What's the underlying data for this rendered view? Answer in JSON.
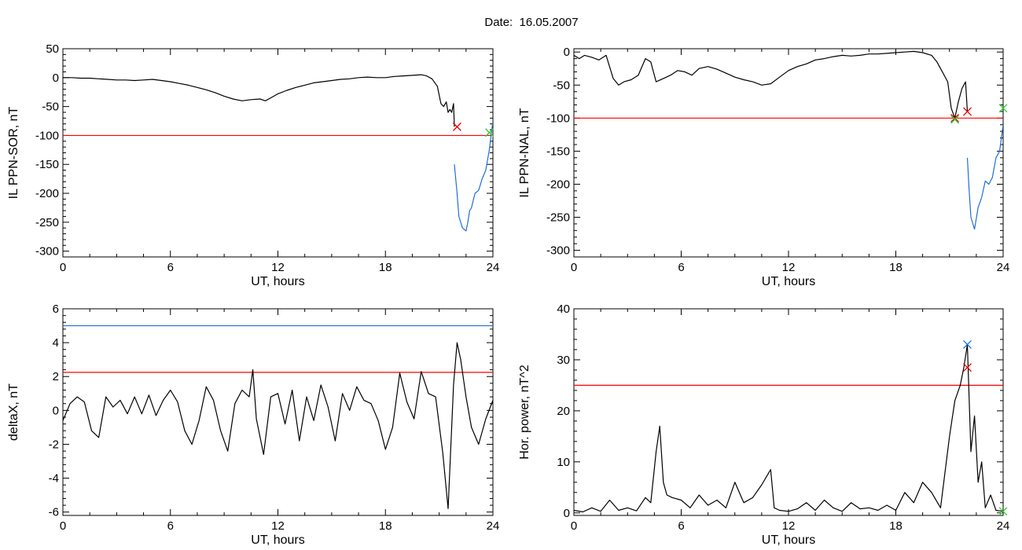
{
  "page_title": "Date:  16.05.2007",
  "colors": {
    "signal": "#000000",
    "threshold_red": "#ff0000",
    "threshold_blue": "#1f6fd6",
    "event_segment_blue": "#1f6fd6",
    "marker_red": "#e00000",
    "marker_green": "#33cc33",
    "marker_blue": "#1f6fd6"
  },
  "chart_data": [
    {
      "type": "line",
      "xlabel": "UT, hours",
      "ylabel": "IL PPN-SOR, nT",
      "xlim": [
        0,
        24
      ],
      "ylim": [
        -310,
        50
      ],
      "xticks": [
        0,
        6,
        12,
        18,
        24
      ],
      "yticks": [
        50,
        0,
        -50,
        -100,
        -150,
        -200,
        -250,
        -300
      ],
      "grid": false,
      "thresholds": [
        {
          "y": -100,
          "color": "#ff0000"
        }
      ],
      "series": [
        {
          "color": "#000000",
          "x": [
            0,
            0.5,
            1,
            1.5,
            2,
            2.5,
            3,
            3.5,
            4,
            4.5,
            5,
            5.5,
            6,
            6.5,
            7,
            7.5,
            8,
            8.5,
            9,
            9.5,
            10,
            10.5,
            11,
            11.3,
            11.6,
            12,
            12.5,
            13,
            13.5,
            14,
            14.5,
            15,
            15.5,
            16,
            16.5,
            17,
            17.5,
            18,
            18.5,
            19,
            19.5,
            20,
            20.3,
            20.6,
            20.9,
            21.1,
            21.25,
            21.4,
            21.5,
            21.6,
            21.7,
            21.8,
            21.85
          ],
          "y": [
            0,
            0,
            -1,
            -1,
            -2,
            -3,
            -4,
            -4,
            -5,
            -4,
            -3,
            -5,
            -7,
            -10,
            -13,
            -17,
            -21,
            -26,
            -32,
            -37,
            -40,
            -38,
            -37,
            -40,
            -35,
            -28,
            -22,
            -17,
            -13,
            -9,
            -7,
            -5,
            -3,
            -2,
            0,
            1,
            0,
            0,
            2,
            3,
            4,
            5,
            3,
            -2,
            -15,
            -45,
            -50,
            -42,
            -60,
            -55,
            -60,
            -45,
            -85
          ]
        },
        {
          "color": "#1f6fd6",
          "x": [
            21.85,
            22,
            22.1,
            22.3,
            22.5,
            22.6,
            22.7,
            22.8,
            23,
            23.2,
            23.4,
            23.6,
            23.8,
            24
          ],
          "y": [
            -150,
            -200,
            -240,
            -260,
            -265,
            -250,
            -230,
            -225,
            -200,
            -195,
            -175,
            -160,
            -125,
            -75
          ]
        }
      ],
      "markers": [
        {
          "x": 22.0,
          "y": -85,
          "symbol": "x",
          "color": "#e00000"
        },
        {
          "x": 23.8,
          "y": -95,
          "symbol": "x",
          "color": "#33cc33"
        }
      ]
    },
    {
      "type": "line",
      "xlabel": "UT, hours",
      "ylabel": "IL PPN-NAL, nT",
      "xlim": [
        0,
        24
      ],
      "ylim": [
        -310,
        5
      ],
      "xticks": [
        0,
        6,
        12,
        18,
        24
      ],
      "yticks": [
        0,
        -50,
        -100,
        -150,
        -200,
        -250,
        -300
      ],
      "grid": false,
      "thresholds": [
        {
          "y": -100,
          "color": "#ff0000"
        }
      ],
      "series": [
        {
          "color": "#000000",
          "x": [
            0,
            0.3,
            0.6,
            1,
            1.4,
            1.8,
            2.2,
            2.5,
            2.8,
            3.2,
            3.6,
            4,
            4.3,
            4.6,
            5,
            5.4,
            5.8,
            6.2,
            6.6,
            7,
            7.5,
            8,
            8.5,
            9,
            9.5,
            10,
            10.5,
            11,
            11.5,
            12,
            12.5,
            13,
            13.5,
            14,
            14.5,
            15,
            15.5,
            16,
            16.5,
            17,
            17.5,
            18,
            18.5,
            19,
            19.5,
            20,
            20.3,
            20.6,
            20.9,
            21.1,
            21.3,
            21.5,
            21.7,
            21.9,
            22.0
          ],
          "y": [
            -5,
            -10,
            -5,
            -8,
            -12,
            -5,
            -40,
            -50,
            -45,
            -42,
            -35,
            -10,
            -15,
            -45,
            -40,
            -35,
            -28,
            -30,
            -35,
            -25,
            -22,
            -26,
            -32,
            -38,
            -42,
            -45,
            -50,
            -48,
            -38,
            -28,
            -22,
            -18,
            -12,
            -10,
            -7,
            -5,
            -6,
            -5,
            -3,
            -3,
            -2,
            -1,
            0,
            1,
            -1,
            -5,
            -15,
            -30,
            -45,
            -85,
            -100,
            -75,
            -55,
            -45,
            -90
          ]
        },
        {
          "color": "#1f6fd6",
          "x": [
            22.0,
            22.1,
            22.2,
            22.4,
            22.6,
            22.8,
            23,
            23.2,
            23.4,
            23.6,
            23.8,
            24
          ],
          "y": [
            -160,
            -210,
            -250,
            -268,
            -235,
            -220,
            -195,
            -200,
            -190,
            -160,
            -150,
            -110
          ]
        }
      ],
      "markers": [
        {
          "x": 21.3,
          "y": -100,
          "symbol": "x",
          "color": "#e00000"
        },
        {
          "x": 21.3,
          "y": -102,
          "symbol": "x",
          "color": "#33cc33"
        },
        {
          "x": 22.0,
          "y": -90,
          "symbol": "x",
          "color": "#e00000"
        },
        {
          "x": 24.0,
          "y": -85,
          "symbol": "x",
          "color": "#33cc33"
        }
      ]
    },
    {
      "type": "line",
      "xlabel": "UT, hours",
      "ylabel": "deltaX, nT",
      "xlim": [
        0,
        24
      ],
      "ylim": [
        -6.2,
        6
      ],
      "xticks": [
        0,
        6,
        12,
        18,
        24
      ],
      "yticks": [
        6,
        4,
        2,
        0,
        -2,
        -4,
        -6
      ],
      "grid": false,
      "thresholds": [
        {
          "y": 5.0,
          "color": "#1f6fd6"
        },
        {
          "y": 2.25,
          "color": "#ff0000"
        }
      ],
      "series": [
        {
          "color": "#000000",
          "x": [
            0,
            0.4,
            0.8,
            1.2,
            1.6,
            2.0,
            2.4,
            2.8,
            3.2,
            3.6,
            4.0,
            4.4,
            4.8,
            5.2,
            5.6,
            6.0,
            6.4,
            6.8,
            7.2,
            7.6,
            8.0,
            8.4,
            8.8,
            9.2,
            9.6,
            10.0,
            10.4,
            10.6,
            10.8,
            11.2,
            11.6,
            12.0,
            12.4,
            12.8,
            13.2,
            13.6,
            14.0,
            14.4,
            14.8,
            15.2,
            15.6,
            16.0,
            16.4,
            16.8,
            17.2,
            17.6,
            18.0,
            18.4,
            18.8,
            19.2,
            19.6,
            20.0,
            20.4,
            20.8,
            21.2,
            21.5,
            21.8,
            22.0,
            22.2,
            22.5,
            22.8,
            23.2,
            23.6,
            24.0
          ],
          "y": [
            -0.6,
            0.4,
            0.8,
            0.5,
            -1.2,
            -1.6,
            0.8,
            0.2,
            0.6,
            -0.2,
            0.8,
            -0.2,
            0.9,
            -0.3,
            0.6,
            1.2,
            0.5,
            -1.2,
            -2.0,
            -0.6,
            1.4,
            0.6,
            -1.2,
            -2.4,
            0.4,
            1.2,
            0.8,
            2.4,
            -0.5,
            -2.6,
            0.8,
            1.0,
            -0.8,
            1.2,
            -1.8,
            0.8,
            -0.6,
            1.5,
            0.2,
            -1.8,
            1.0,
            0.0,
            1.4,
            0.6,
            0.4,
            -0.6,
            -2.3,
            -1.0,
            2.2,
            0.5,
            -0.5,
            2.3,
            1.0,
            0.8,
            -2.5,
            -5.8,
            1.5,
            4.0,
            3.0,
            0.8,
            -1.0,
            -2.0,
            -0.5,
            0.6
          ]
        }
      ],
      "markers": []
    },
    {
      "type": "line",
      "xlabel": "UT, hours",
      "ylabel": "Hor. power, nT^2",
      "xlim": [
        0,
        24
      ],
      "ylim": [
        -0.5,
        40
      ],
      "xticks": [
        0,
        6,
        12,
        18,
        24
      ],
      "yticks": [
        40,
        30,
        20,
        10,
        0
      ],
      "grid": false,
      "thresholds": [
        {
          "y": 25,
          "color": "#ff0000"
        }
      ],
      "series": [
        {
          "color": "#000000",
          "x": [
            0,
            0.5,
            1,
            1.5,
            2,
            2.5,
            3,
            3.5,
            4,
            4.3,
            4.6,
            4.8,
            5.0,
            5.2,
            5.5,
            6,
            6.5,
            7,
            7.5,
            8,
            8.5,
            9,
            9.5,
            10,
            10.5,
            11,
            11.2,
            11.5,
            12,
            12.5,
            13,
            13.5,
            14,
            14.5,
            15,
            15.5,
            16,
            16.5,
            17,
            17.5,
            18,
            18.5,
            19,
            19.5,
            20,
            20.5,
            21,
            21.3,
            21.6,
            21.8,
            22.0,
            22.2,
            22.4,
            22.6,
            22.8,
            23,
            23.3,
            23.6,
            24
          ],
          "y": [
            0.5,
            0.2,
            1.0,
            0.3,
            2.5,
            0.5,
            1.0,
            0.4,
            3.0,
            2.0,
            12.0,
            17.0,
            6.0,
            3.5,
            3.0,
            2.5,
            1.0,
            3.5,
            1.5,
            2.5,
            1.0,
            6.0,
            2.0,
            3.0,
            5.5,
            8.5,
            1.0,
            0.5,
            0.3,
            0.8,
            2.0,
            0.5,
            2.5,
            1.0,
            0.3,
            2.0,
            0.8,
            1.0,
            0.5,
            1.5,
            0.5,
            4.0,
            2.0,
            6.0,
            4.0,
            1.0,
            15.0,
            22.0,
            25.0,
            28.5,
            33.0,
            12.0,
            19.0,
            6.0,
            10.0,
            1.0,
            3.5,
            0.5,
            0.3
          ]
        }
      ],
      "markers": [
        {
          "x": 22.0,
          "y": 28.5,
          "symbol": "x",
          "color": "#e00000"
        },
        {
          "x": 22.0,
          "y": 33.0,
          "symbol": "x",
          "color": "#1f6fd6"
        },
        {
          "x": 24.0,
          "y": 0.3,
          "symbol": "x",
          "color": "#33cc33"
        }
      ]
    }
  ]
}
